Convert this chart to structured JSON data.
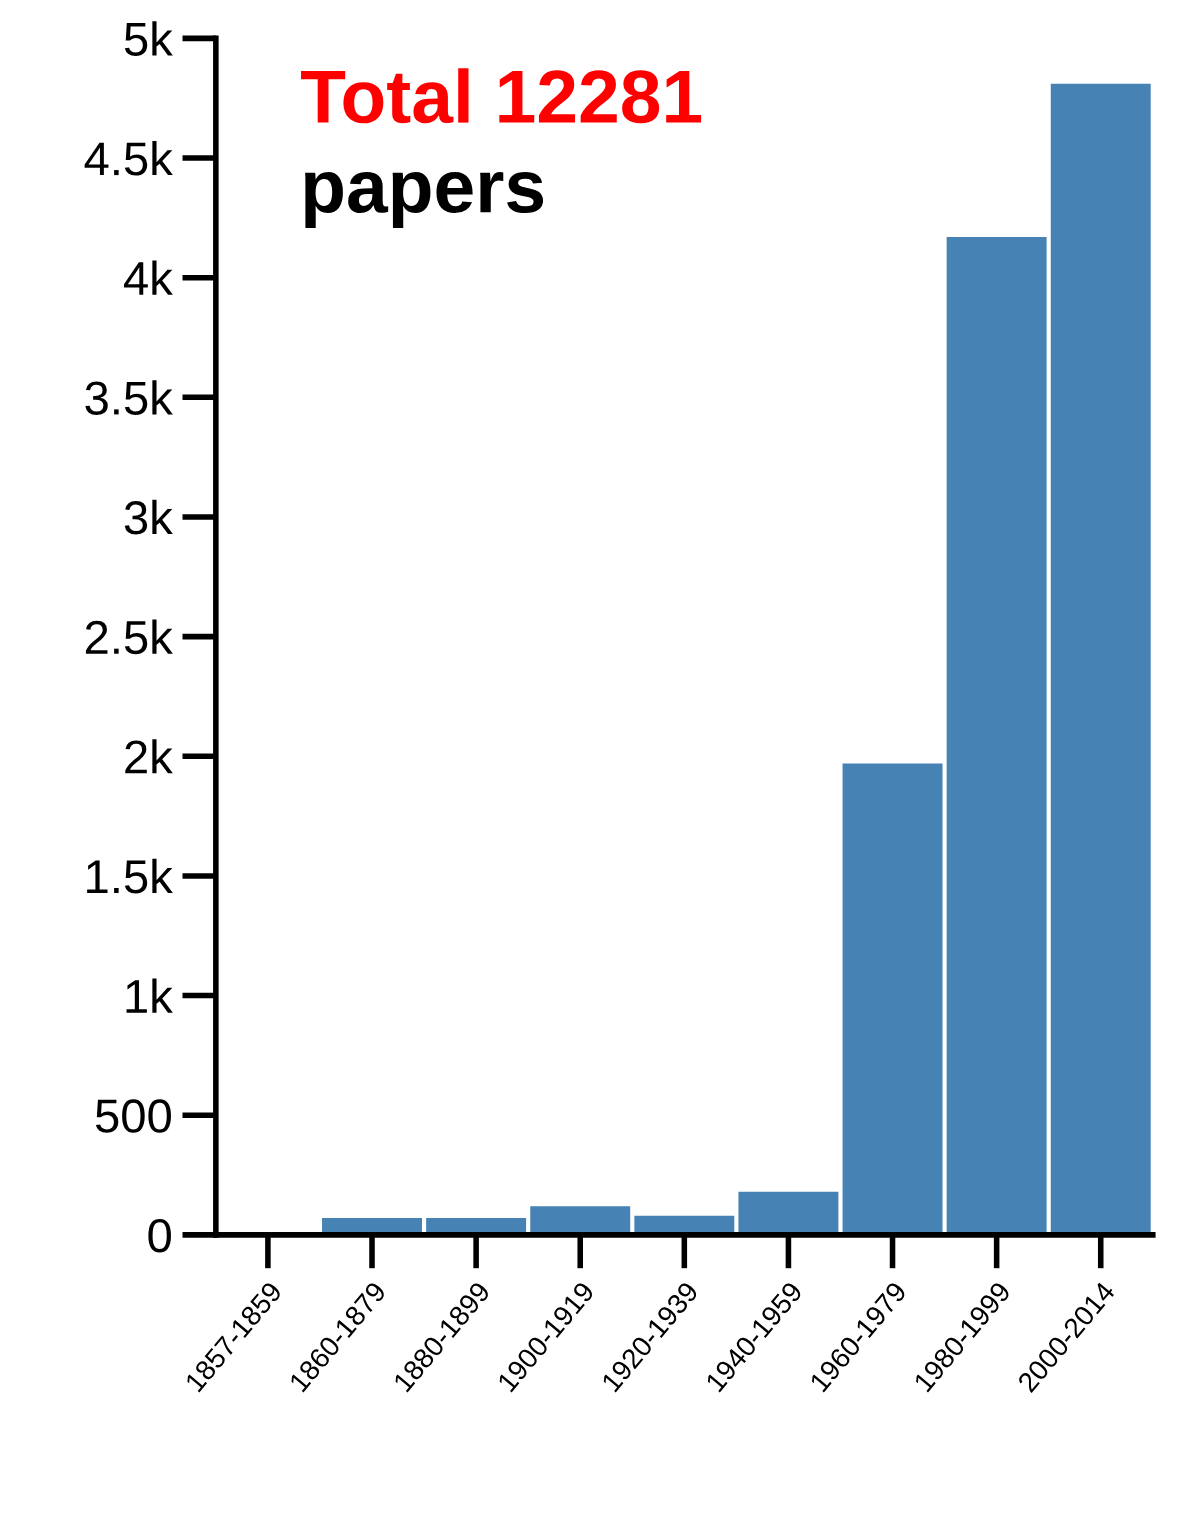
{
  "chart_data": {
    "type": "bar",
    "categories": [
      "1857-1859",
      "1860-1879",
      "1880-1899",
      "1900-1919",
      "1920-1939",
      "1940-1959",
      "1960-1979",
      "1980-1999",
      "2000-2014"
    ],
    "values": [
      0,
      70,
      70,
      120,
      80,
      180,
      1970,
      4170,
      4810
    ],
    "color": "#4682b4",
    "ylim": [
      0,
      5000
    ],
    "yticks": [
      0,
      500,
      {
        "value": 1000,
        "label": "1k"
      },
      {
        "value": 1500,
        "label": "1.5k"
      },
      {
        "value": 2000,
        "label": "2k"
      },
      {
        "value": 2500,
        "label": "2.5k"
      },
      {
        "value": 3000,
        "label": "3k"
      },
      {
        "value": 3500,
        "label": "3.5k"
      },
      {
        "value": 4000,
        "label": "4k"
      },
      {
        "value": 4500,
        "label": "4.5k"
      },
      {
        "value": 5000,
        "label": "5k"
      }
    ],
    "annotations": [
      "Total 12281",
      "papers"
    ],
    "grid": false
  }
}
